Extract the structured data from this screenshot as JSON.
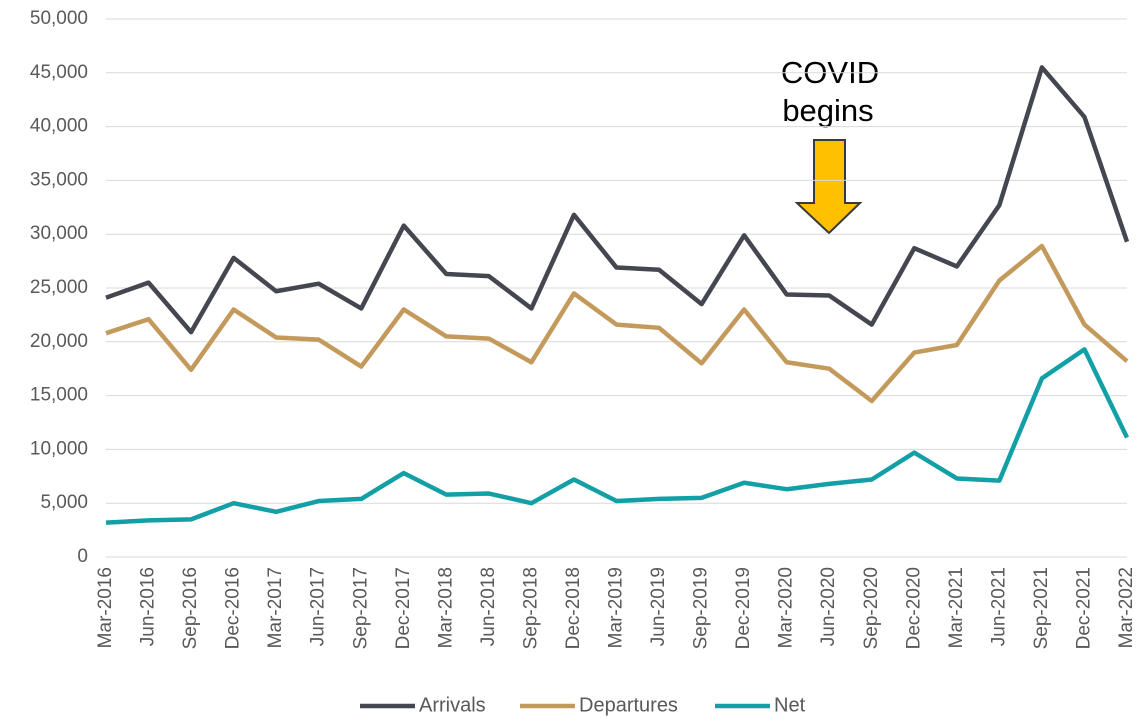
{
  "chart_data": {
    "type": "line",
    "annotation": [
      "COVID",
      "begins"
    ],
    "categories": [
      "Mar-2016",
      "Jun-2016",
      "Sep-2016",
      "Dec-2016",
      "Mar-2017",
      "Jun-2017",
      "Sep-2017",
      "Dec-2017",
      "Mar-2018",
      "Jun-2018",
      "Sep-2018",
      "Dec-2018",
      "Mar-2019",
      "Jun-2019",
      "Sep-2019",
      "Dec-2019",
      "Mar-2020",
      "Jun-2020",
      "Sep-2020",
      "Dec-2020",
      "Mar-2021",
      "Jun-2021",
      "Sep-2021",
      "Dec-2021",
      "Mar-2022"
    ],
    "series": [
      {
        "name": "Arrivals",
        "color": "#44474f",
        "values": [
          24100,
          25500,
          20900,
          27800,
          24700,
          25400,
          23100,
          30800,
          26300,
          26100,
          23100,
          31800,
          26900,
          26700,
          23500,
          29900,
          24400,
          24300,
          21600,
          28700,
          27000,
          32700,
          45500,
          40900,
          29300
        ]
      },
      {
        "name": "Departures",
        "color": "#c49a5c",
        "values": [
          20800,
          22100,
          17400,
          23000,
          20400,
          20200,
          17700,
          23000,
          20500,
          20300,
          18100,
          24500,
          21600,
          21300,
          18000,
          23000,
          18100,
          17500,
          14500,
          19000,
          19700,
          25700,
          28900,
          21600,
          18200
        ]
      },
      {
        "name": "Net",
        "color": "#12a0a6",
        "values": [
          3200,
          3400,
          3500,
          5000,
          4200,
          5200,
          5400,
          7800,
          5800,
          5900,
          5000,
          7200,
          5200,
          5400,
          5500,
          6900,
          6300,
          6800,
          7200,
          9700,
          7300,
          7100,
          16600,
          19300,
          11100
        ]
      }
    ],
    "ylim": [
      0,
      50000
    ],
    "yticks": [
      0,
      {
        "value": 5000,
        "label": "5,000"
      },
      {
        "value": 10000,
        "label": "10,000"
      },
      {
        "value": 15000,
        "label": "15,000"
      },
      {
        "value": 20000,
        "label": "20,000"
      },
      {
        "value": 25000,
        "label": "25,000"
      },
      {
        "value": 30000,
        "label": "30,000"
      },
      {
        "value": 35000,
        "label": "35,000"
      },
      {
        "value": 40000,
        "label": "40,000"
      },
      {
        "value": 45000,
        "label": "45,000"
      },
      {
        "value": 50000,
        "label": "50,000"
      }
    ],
    "grid": true,
    "legend": "bottom"
  }
}
